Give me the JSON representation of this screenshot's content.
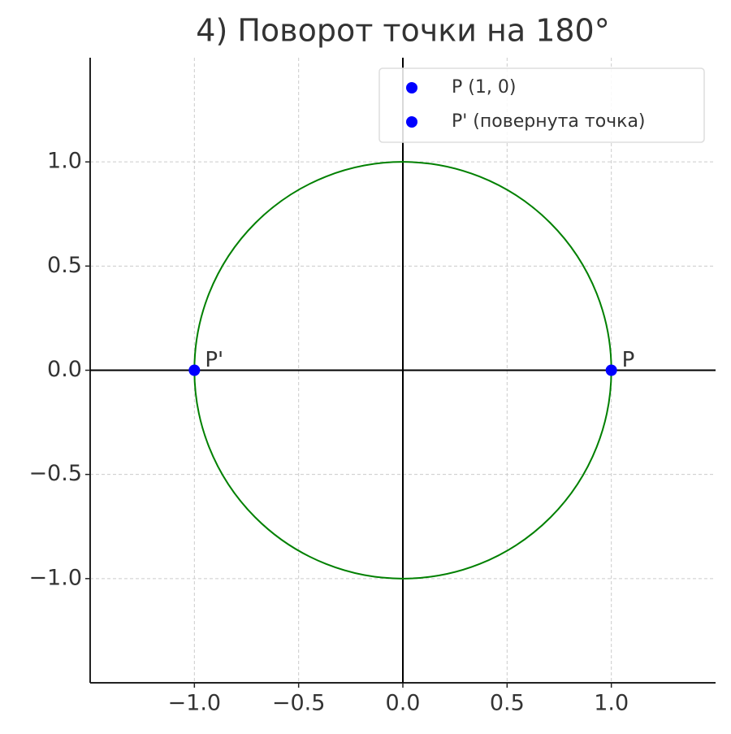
{
  "chart_data": {
    "type": "scatter",
    "title": "4) Поворот точки на 180°",
    "xlim": [
      -1.5,
      1.5
    ],
    "ylim": [
      -1.5,
      1.5
    ],
    "xticks": [
      {
        "value": -1,
        "label": "−1.0"
      },
      {
        "value": -0.5,
        "label": "−0.5"
      },
      {
        "value": 0,
        "label": "0.0"
      },
      0.5,
      {
        "value": 1,
        "label": "1.0"
      }
    ],
    "yticks": [
      {
        "value": -1,
        "label": "−1.0"
      },
      {
        "value": -0.5,
        "label": "−0.5"
      },
      {
        "value": 0,
        "label": "0.0"
      },
      0.5,
      {
        "value": 1,
        "label": "1.0"
      }
    ],
    "grid": true,
    "legend": "upper right",
    "circle": {
      "center": [
        0,
        0
      ],
      "radius": 1,
      "color": "green"
    },
    "reference_lines": {
      "x": 0,
      "y": 0,
      "color": "black"
    },
    "series": [
      {
        "name": "P (1, 0)",
        "color": "blue",
        "x": [
          1
        ],
        "values": [
          0
        ],
        "labels": [
          "P"
        ]
      },
      {
        "name": "P' (повернута точка)",
        "color": "blue",
        "x": [
          -1
        ],
        "values": [
          0
        ],
        "labels": [
          "P'"
        ]
      }
    ]
  }
}
